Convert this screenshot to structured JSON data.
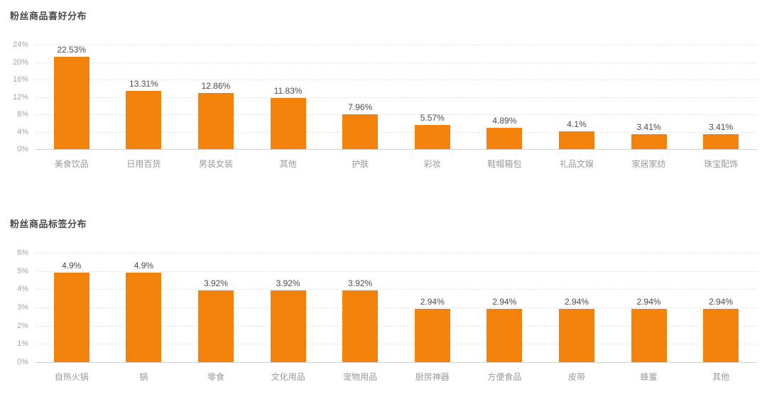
{
  "accent_color": "#F2820A",
  "chart_data": [
    {
      "type": "bar",
      "title": "粉丝商品喜好分布",
      "categories": [
        "美食饮品",
        "日用百货",
        "男装女装",
        "其他",
        "护肤",
        "彩妆",
        "鞋帽箱包",
        "礼品文娱",
        "家居家纺",
        "珠宝配饰"
      ],
      "values": [
        22.53,
        13.31,
        12.86,
        11.83,
        7.96,
        5.57,
        4.89,
        4.1,
        3.41,
        3.41
      ],
      "value_labels": [
        "22.53%",
        "13.31%",
        "12.86%",
        "11.83%",
        "7.96%",
        "5.57%",
        "4.89%",
        "4.1%",
        "3.41%",
        "3.41%"
      ],
      "xlabel": "",
      "ylabel": "",
      "ylim": [
        0,
        24
      ],
      "yticks": [
        "24%",
        "20%",
        "16%",
        "12%",
        "8%",
        "4%",
        "0%"
      ],
      "grid": "dashed-horizontal",
      "legend": "none",
      "bar_color": "#F2820A"
    },
    {
      "type": "bar",
      "title": "粉丝商品标签分布",
      "categories": [
        "自热火锅",
        "锅",
        "零食",
        "文化用品",
        "宠物用品",
        "厨房神器",
        "方便食品",
        "皮带",
        "蜂蜜",
        "其他"
      ],
      "values": [
        4.9,
        4.9,
        3.92,
        3.92,
        3.92,
        2.94,
        2.94,
        2.94,
        2.94,
        2.94
      ],
      "value_labels": [
        "4.9%",
        "4.9%",
        "3.92%",
        "3.92%",
        "3.92%",
        "2.94%",
        "2.94%",
        "2.94%",
        "2.94%",
        "2.94%"
      ],
      "xlabel": "",
      "ylabel": "",
      "ylim": [
        0,
        6
      ],
      "yticks": [
        "6%",
        "5%",
        "4%",
        "3%",
        "2%",
        "1%",
        "0%"
      ],
      "grid": "dashed-horizontal",
      "legend": "none",
      "bar_color": "#F2820A"
    }
  ]
}
